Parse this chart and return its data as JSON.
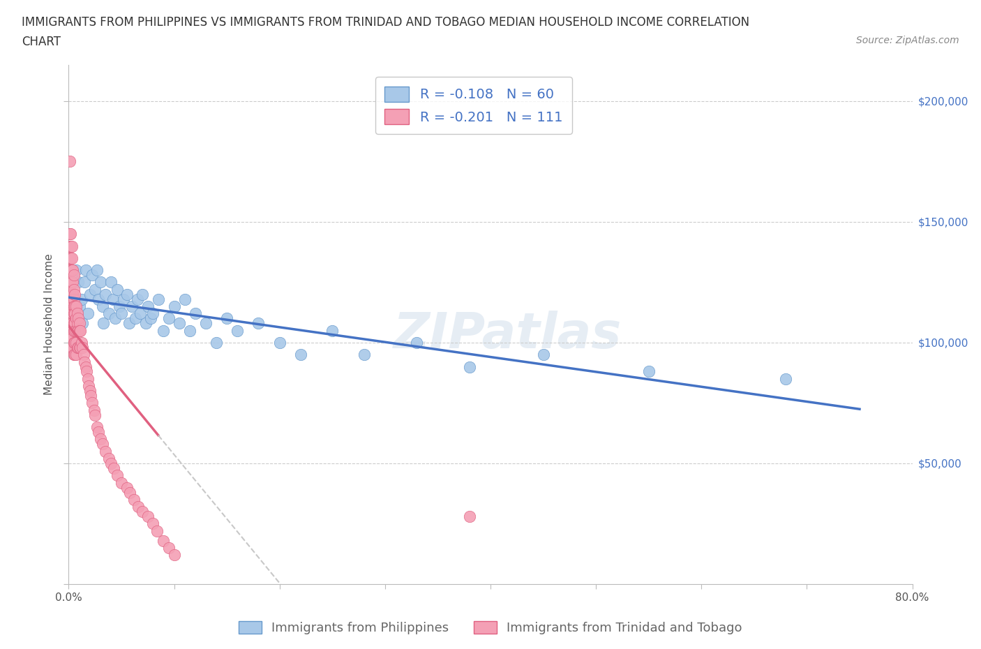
{
  "title_line1": "IMMIGRANTS FROM PHILIPPINES VS IMMIGRANTS FROM TRINIDAD AND TOBAGO MEDIAN HOUSEHOLD INCOME CORRELATION",
  "title_line2": "CHART",
  "source": "Source: ZipAtlas.com",
  "watermark": "ZIPatlas",
  "philippines": {
    "label": "Immigrants from Philippines",
    "color": "#a8c8e8",
    "edge_color": "#6699cc",
    "R": -0.108,
    "N": 60,
    "x": [
      0.004,
      0.006,
      0.007,
      0.009,
      0.01,
      0.012,
      0.013,
      0.015,
      0.016,
      0.018,
      0.02,
      0.022,
      0.025,
      0.027,
      0.028,
      0.03,
      0.032,
      0.033,
      0.035,
      0.038,
      0.04,
      0.042,
      0.044,
      0.046,
      0.048,
      0.05,
      0.052,
      0.055,
      0.057,
      0.06,
      0.063,
      0.065,
      0.068,
      0.07,
      0.073,
      0.075,
      0.078,
      0.08,
      0.085,
      0.09,
      0.095,
      0.1,
      0.105,
      0.11,
      0.115,
      0.12,
      0.13,
      0.14,
      0.15,
      0.16,
      0.18,
      0.2,
      0.22,
      0.25,
      0.28,
      0.33,
      0.38,
      0.45,
      0.55,
      0.68
    ],
    "y": [
      120000,
      105000,
      130000,
      125000,
      115000,
      118000,
      108000,
      125000,
      130000,
      112000,
      120000,
      128000,
      122000,
      130000,
      118000,
      125000,
      115000,
      108000,
      120000,
      112000,
      125000,
      118000,
      110000,
      122000,
      115000,
      112000,
      118000,
      120000,
      108000,
      115000,
      110000,
      118000,
      112000,
      120000,
      108000,
      115000,
      110000,
      112000,
      118000,
      105000,
      110000,
      115000,
      108000,
      118000,
      105000,
      112000,
      108000,
      100000,
      110000,
      105000,
      108000,
      100000,
      95000,
      105000,
      95000,
      100000,
      90000,
      95000,
      88000,
      85000
    ]
  },
  "trinidad": {
    "label": "Immigrants from Trinidad and Tobago",
    "color": "#f4a0b5",
    "edge_color": "#e06080",
    "R": -0.201,
    "N": 111,
    "x": [
      0.001,
      0.001,
      0.001,
      0.001,
      0.001,
      0.001,
      0.001,
      0.001,
      0.001,
      0.001,
      0.002,
      0.002,
      0.002,
      0.002,
      0.002,
      0.002,
      0.002,
      0.002,
      0.002,
      0.002,
      0.002,
      0.003,
      0.003,
      0.003,
      0.003,
      0.003,
      0.003,
      0.003,
      0.003,
      0.003,
      0.003,
      0.003,
      0.003,
      0.004,
      0.004,
      0.004,
      0.004,
      0.004,
      0.004,
      0.004,
      0.004,
      0.004,
      0.004,
      0.005,
      0.005,
      0.005,
      0.005,
      0.005,
      0.005,
      0.005,
      0.005,
      0.005,
      0.006,
      0.006,
      0.006,
      0.006,
      0.006,
      0.006,
      0.006,
      0.007,
      0.007,
      0.007,
      0.007,
      0.007,
      0.008,
      0.008,
      0.008,
      0.008,
      0.009,
      0.009,
      0.009,
      0.01,
      0.01,
      0.01,
      0.011,
      0.011,
      0.012,
      0.013,
      0.014,
      0.015,
      0.016,
      0.017,
      0.018,
      0.019,
      0.02,
      0.021,
      0.022,
      0.024,
      0.025,
      0.027,
      0.028,
      0.03,
      0.032,
      0.035,
      0.038,
      0.04,
      0.043,
      0.046,
      0.05,
      0.055,
      0.058,
      0.062,
      0.066,
      0.07,
      0.075,
      0.08,
      0.084,
      0.09,
      0.095,
      0.1,
      0.38
    ],
    "y": [
      175000,
      145000,
      140000,
      135000,
      130000,
      125000,
      122000,
      118000,
      115000,
      112000,
      145000,
      140000,
      135000,
      130000,
      125000,
      120000,
      118000,
      115000,
      112000,
      108000,
      105000,
      140000,
      135000,
      130000,
      125000,
      120000,
      118000,
      115000,
      112000,
      108000,
      105000,
      102000,
      98000,
      130000,
      125000,
      120000,
      118000,
      115000,
      112000,
      108000,
      105000,
      102000,
      98000,
      128000,
      122000,
      118000,
      115000,
      112000,
      108000,
      105000,
      100000,
      95000,
      120000,
      115000,
      112000,
      108000,
      105000,
      100000,
      95000,
      115000,
      110000,
      105000,
      100000,
      95000,
      112000,
      108000,
      105000,
      98000,
      110000,
      105000,
      98000,
      108000,
      105000,
      98000,
      105000,
      98000,
      100000,
      98000,
      95000,
      92000,
      90000,
      88000,
      85000,
      82000,
      80000,
      78000,
      75000,
      72000,
      70000,
      65000,
      63000,
      60000,
      58000,
      55000,
      52000,
      50000,
      48000,
      45000,
      42000,
      40000,
      38000,
      35000,
      32000,
      30000,
      28000,
      25000,
      22000,
      18000,
      15000,
      12000,
      28000
    ]
  },
  "xlim": [
    0.0,
    0.8
  ],
  "ylim": [
    0,
    215000
  ],
  "yticks": [
    0,
    50000,
    100000,
    150000,
    200000
  ],
  "ytick_labels": [
    "",
    "$50,000",
    "$100,000",
    "$150,000",
    "$200,000"
  ],
  "xticks": [
    0.0,
    0.1,
    0.2,
    0.3,
    0.4,
    0.5,
    0.6,
    0.7,
    0.8
  ],
  "xtick_labels": [
    "0.0%",
    "",
    "",
    "",
    "",
    "",
    "",
    "",
    "80.0%"
  ],
  "reg_phil_color": "#4472c4",
  "reg_trin_color": "#e06080",
  "reg_dashed_color": "#c8c8c8",
  "legend_fontsize": 14,
  "title_fontsize": 12,
  "axis_label_fontsize": 11,
  "tick_fontsize": 11,
  "source_fontsize": 10,
  "watermark_fontsize": 52,
  "watermark_color": "#c8d8e8",
  "watermark_alpha": 0.45,
  "background_color": "#ffffff",
  "ylabel": "Median Household Income",
  "accent_color": "#4472c4"
}
